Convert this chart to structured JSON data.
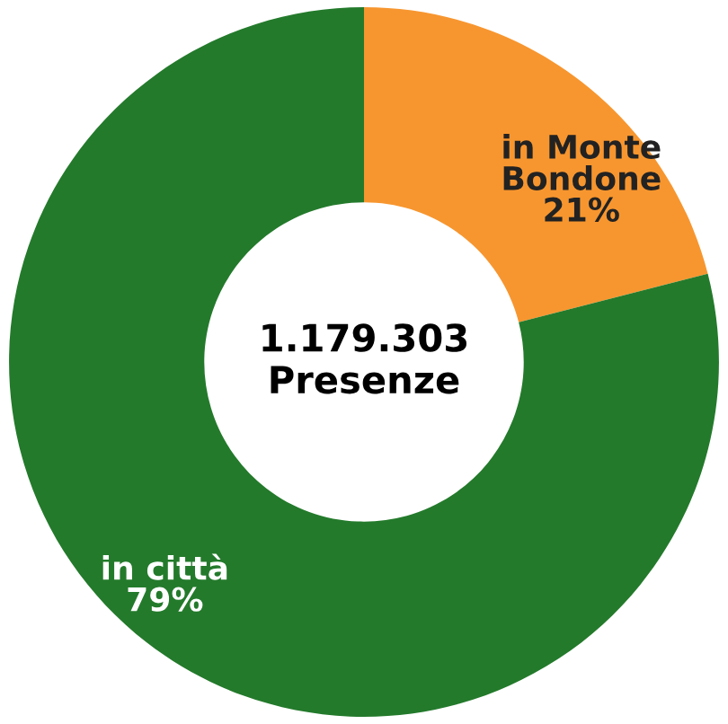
{
  "chart_data": {
    "type": "donut",
    "categories": [
      "in Monte\nBondone",
      "in città"
    ],
    "values": [
      21,
      79
    ],
    "value_labels": [
      "21%",
      "79%"
    ],
    "colors": [
      "#f7962f",
      "#237a2b"
    ],
    "annotations": [
      "1.179.303\nPresenze"
    ],
    "legend": false
  }
}
